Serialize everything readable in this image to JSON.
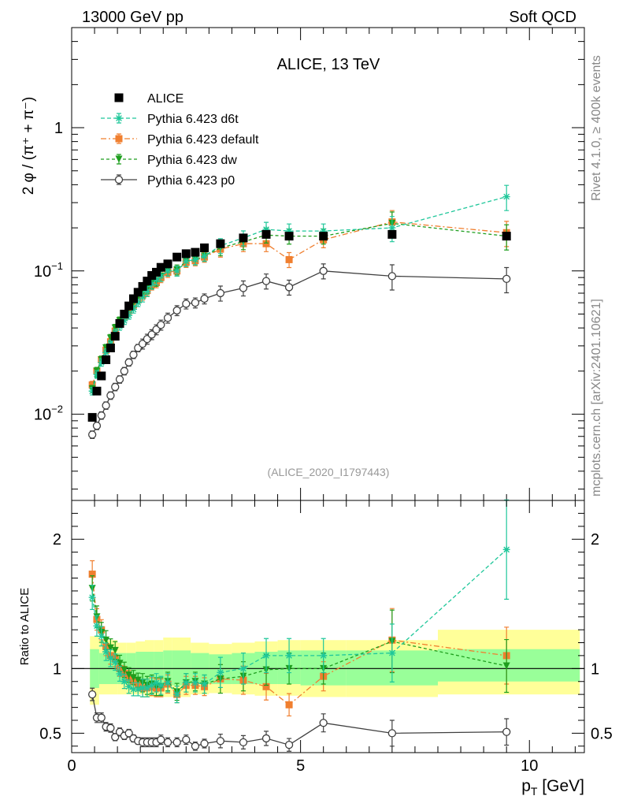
{
  "header": {
    "left": "13000 GeV pp",
    "right": "Soft QCD"
  },
  "side_labels": {
    "rivet": "Rivet 4.1.0, ≥ 400k events",
    "mcplots": "mcplots.cern.ch [arXiv:2401.10621]"
  },
  "colors": {
    "alice": "#000000",
    "d6t": "#1fc79a",
    "default": "#f07f2f",
    "dw": "#1e9e1e",
    "p0": "#404040",
    "band_outer": "#ffff99",
    "band_inner": "#99ff99"
  },
  "chart_data": [
    {
      "type": "scatter",
      "title": "ALICE, 13 TeV",
      "reference": "(ALICE_2020_I1797443)",
      "ylabel": "2 φ / (π⁺ + π⁻)",
      "yscale": "log",
      "xlim": [
        0,
        11.2
      ],
      "ylim": [
        0.0025,
        5
      ],
      "yticks": [
        {
          "v": 0.01,
          "base": "10",
          "exp": "−2"
        },
        {
          "v": 0.1,
          "base": "10",
          "exp": "−1"
        },
        {
          "v": 1,
          "base": "1",
          "exp": ""
        }
      ],
      "legend_position": "top-left",
      "x": [
        0.45,
        0.55,
        0.65,
        0.75,
        0.85,
        0.95,
        1.05,
        1.15,
        1.25,
        1.35,
        1.45,
        1.55,
        1.65,
        1.75,
        1.85,
        1.95,
        2.1,
        2.3,
        2.5,
        2.7,
        2.9,
        3.25,
        3.75,
        4.25,
        4.75,
        5.5,
        7.0,
        9.5
      ],
      "series": [
        {
          "name": "ALICE",
          "key": "alice",
          "marker": "square",
          "values": [
            0.0095,
            0.0145,
            0.0185,
            0.024,
            0.029,
            0.035,
            0.043,
            0.05,
            0.057,
            0.064,
            0.071,
            0.078,
            0.085,
            0.093,
            0.098,
            0.106,
            0.112,
            0.125,
            0.132,
            0.135,
            0.145,
            0.155,
            0.17,
            0.18,
            0.175,
            0.175,
            0.18,
            0.175
          ]
        },
        {
          "name": "Pythia 6.423 d6t",
          "key": "d6t",
          "marker": "star",
          "dash": "5,3",
          "values": [
            0.0145,
            0.019,
            0.023,
            0.027,
            0.031,
            0.037,
            0.041,
            0.045,
            0.049,
            0.054,
            0.06,
            0.066,
            0.072,
            0.081,
            0.087,
            0.092,
            0.1,
            0.1,
            0.117,
            0.12,
            0.127,
            0.15,
            0.17,
            0.195,
            0.19,
            0.19,
            0.2,
            0.33
          ]
        },
        {
          "name": "Pythia 6.423 default",
          "key": "default",
          "marker": "square",
          "dash": "7,3,2,3",
          "values": [
            0.016,
            0.02,
            0.024,
            0.028,
            0.032,
            0.038,
            0.043,
            0.048,
            0.053,
            0.058,
            0.063,
            0.068,
            0.073,
            0.08,
            0.083,
            0.09,
            0.098,
            0.1,
            0.115,
            0.118,
            0.125,
            0.142,
            0.155,
            0.155,
            0.12,
            0.165,
            0.22,
            0.185
          ]
        },
        {
          "name": "Pythia 6.423 dw",
          "key": "dw",
          "marker": "triangle-down",
          "dash": "4,3",
          "values": [
            0.015,
            0.02,
            0.024,
            0.029,
            0.034,
            0.04,
            0.045,
            0.05,
            0.055,
            0.06,
            0.065,
            0.07,
            0.075,
            0.082,
            0.085,
            0.092,
            0.1,
            0.102,
            0.117,
            0.12,
            0.127,
            0.145,
            0.16,
            0.178,
            0.175,
            0.175,
            0.215,
            0.175
          ]
        },
        {
          "name": "Pythia 6.423 p0",
          "key": "p0",
          "marker": "open-circle",
          "values": [
            0.0072,
            0.0083,
            0.0098,
            0.0115,
            0.0135,
            0.0155,
            0.0175,
            0.02,
            0.023,
            0.026,
            0.029,
            0.031,
            0.0335,
            0.036,
            0.039,
            0.042,
            0.047,
            0.053,
            0.059,
            0.06,
            0.064,
            0.07,
            0.076,
            0.085,
            0.077,
            0.1,
            0.092,
            0.088
          ]
        }
      ]
    },
    {
      "type": "scatter",
      "ylabel": "Ratio to ALICE",
      "xlabel": "p_T [GeV]",
      "xlim": [
        0,
        11.2
      ],
      "ylim": [
        0.35,
        2.3
      ],
      "yticks": [
        0.5,
        1,
        2
      ],
      "xticks": [
        0,
        5,
        10
      ],
      "reference_line": 1,
      "band_edges": [
        0.4,
        0.6,
        0.8,
        1.0,
        1.2,
        1.4,
        1.6,
        1.8,
        2.0,
        2.2,
        2.4,
        2.6,
        3.0,
        3.5,
        4.0,
        4.5,
        5.0,
        6.0,
        8.0,
        11.1
      ],
      "band_outer_lo": [
        0.72,
        0.8,
        0.8,
        0.8,
        0.8,
        0.8,
        0.78,
        0.78,
        0.78,
        0.78,
        0.78,
        0.8,
        0.81,
        0.8,
        0.79,
        0.79,
        0.78,
        0.78,
        0.8
      ],
      "band_outer_hi": [
        1.25,
        1.22,
        1.22,
        1.2,
        1.2,
        1.21,
        1.22,
        1.22,
        1.24,
        1.24,
        1.24,
        1.2,
        1.19,
        1.2,
        1.21,
        1.22,
        1.22,
        1.22,
        1.3
      ],
      "band_inner_lo": [
        0.85,
        0.88,
        0.88,
        0.88,
        0.88,
        0.88,
        0.87,
        0.87,
        0.87,
        0.87,
        0.87,
        0.88,
        0.88,
        0.88,
        0.88,
        0.88,
        0.87,
        0.87,
        0.9
      ],
      "band_inner_hi": [
        1.15,
        1.12,
        1.12,
        1.12,
        1.12,
        1.13,
        1.13,
        1.13,
        1.14,
        1.14,
        1.14,
        1.12,
        1.11,
        1.12,
        1.13,
        1.14,
        1.14,
        1.14,
        1.15
      ],
      "x": [
        0.45,
        0.55,
        0.65,
        0.75,
        0.85,
        0.95,
        1.05,
        1.15,
        1.25,
        1.35,
        1.45,
        1.55,
        1.65,
        1.75,
        1.85,
        1.95,
        2.1,
        2.3,
        2.5,
        2.7,
        2.9,
        3.25,
        3.75,
        4.25,
        4.75,
        5.5,
        7.0,
        9.5
      ],
      "series": [
        {
          "name": "Pythia 6.423 d6t",
          "key": "d6t",
          "values": [
            1.55,
            1.33,
            1.25,
            1.13,
            1.08,
            1.05,
            0.96,
            0.9,
            0.86,
            0.84,
            0.84,
            0.85,
            0.85,
            0.87,
            0.89,
            0.87,
            0.89,
            0.8,
            0.89,
            0.89,
            0.88,
            0.97,
            1.0,
            1.1,
            1.1,
            1.1,
            1.12,
            1.92
          ]
        },
        {
          "name": "Pythia 6.423 default",
          "key": "default",
          "values": [
            1.73,
            1.38,
            1.3,
            1.17,
            1.1,
            1.08,
            1.0,
            0.96,
            0.93,
            0.9,
            0.88,
            0.85,
            0.85,
            0.86,
            0.85,
            0.85,
            0.88,
            0.8,
            0.87,
            0.87,
            0.86,
            0.92,
            0.91,
            0.86,
            0.72,
            0.94,
            1.22,
            1.1
          ]
        },
        {
          "name": "Pythia 6.423 dw",
          "key": "dw",
          "values": [
            1.62,
            1.4,
            1.28,
            1.22,
            1.16,
            1.14,
            1.04,
            0.99,
            0.95,
            0.93,
            0.91,
            0.89,
            0.87,
            0.88,
            0.86,
            0.86,
            0.9,
            0.82,
            0.89,
            0.9,
            0.88,
            0.92,
            0.94,
            0.99,
            1.0,
            1.0,
            1.21,
            1.02
          ]
        },
        {
          "name": "Pythia 6.423 p0",
          "key": "p0",
          "values": [
            0.8,
            0.62,
            0.62,
            0.55,
            0.54,
            0.47,
            0.51,
            0.48,
            0.5,
            0.46,
            0.44,
            0.43,
            0.43,
            0.43,
            0.43,
            0.45,
            0.43,
            0.43,
            0.45,
            0.4,
            0.42,
            0.44,
            0.43,
            0.46,
            0.41,
            0.58,
            0.5,
            0.51
          ]
        }
      ]
    }
  ]
}
